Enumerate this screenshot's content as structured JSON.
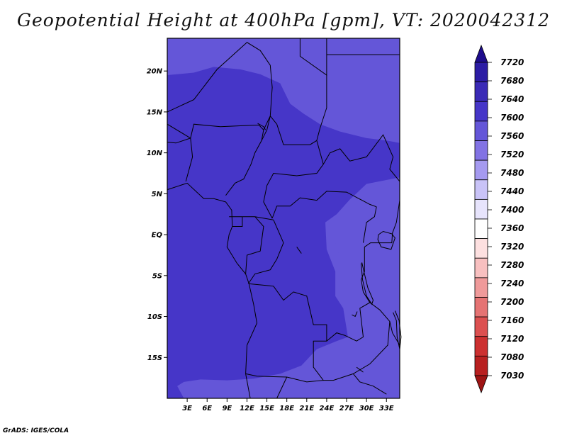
{
  "title": "Geopotential Height at 400hPa [gpm], VT: 2020042312",
  "credit": "GrADS: IGES/COLA",
  "map": {
    "lon_range": [
      0,
      35
    ],
    "lat_range": [
      -20,
      24
    ],
    "x_ticks": [
      {
        "value": 3,
        "label": "3E"
      },
      {
        "value": 6,
        "label": "6E"
      },
      {
        "value": 9,
        "label": "9E"
      },
      {
        "value": 12,
        "label": "12E"
      },
      {
        "value": 15,
        "label": "15E"
      },
      {
        "value": 18,
        "label": "18E"
      },
      {
        "value": 21,
        "label": "21E"
      },
      {
        "value": 24,
        "label": "24E"
      },
      {
        "value": 27,
        "label": "27E"
      },
      {
        "value": 30,
        "label": "30E"
      },
      {
        "value": 33,
        "label": "33E"
      }
    ],
    "y_ticks": [
      {
        "value": 20,
        "label": "20N"
      },
      {
        "value": 15,
        "label": "15N"
      },
      {
        "value": 10,
        "label": "10N"
      },
      {
        "value": 5,
        "label": "5N"
      },
      {
        "value": 0,
        "label": "EQ"
      },
      {
        "value": -5,
        "label": "5S"
      },
      {
        "value": -10,
        "label": "10S"
      },
      {
        "value": -15,
        "label": "15S"
      }
    ],
    "fill_colors": {
      "c7560": "#6456d8",
      "c7600": "#4636c8"
    }
  },
  "colorbar": {
    "levels": [
      "7720",
      "7680",
      "7640",
      "7600",
      "7560",
      "7520",
      "7480",
      "7440",
      "7400",
      "7360",
      "7320",
      "7280",
      "7240",
      "7200",
      "7160",
      "7120",
      "7080",
      "7030"
    ],
    "colors": [
      "#1e0c8c",
      "#2c1ca4",
      "#3a2ab6",
      "#4636c8",
      "#6456d8",
      "#8273e4",
      "#a59af0",
      "#c9c3f7",
      "#e7e4fc",
      "#ffffff",
      "#fde0e0",
      "#f8c0c0",
      "#ef9a9a",
      "#e57373",
      "#dc5050",
      "#cc3030",
      "#b82020",
      "#9e1414"
    ]
  }
}
